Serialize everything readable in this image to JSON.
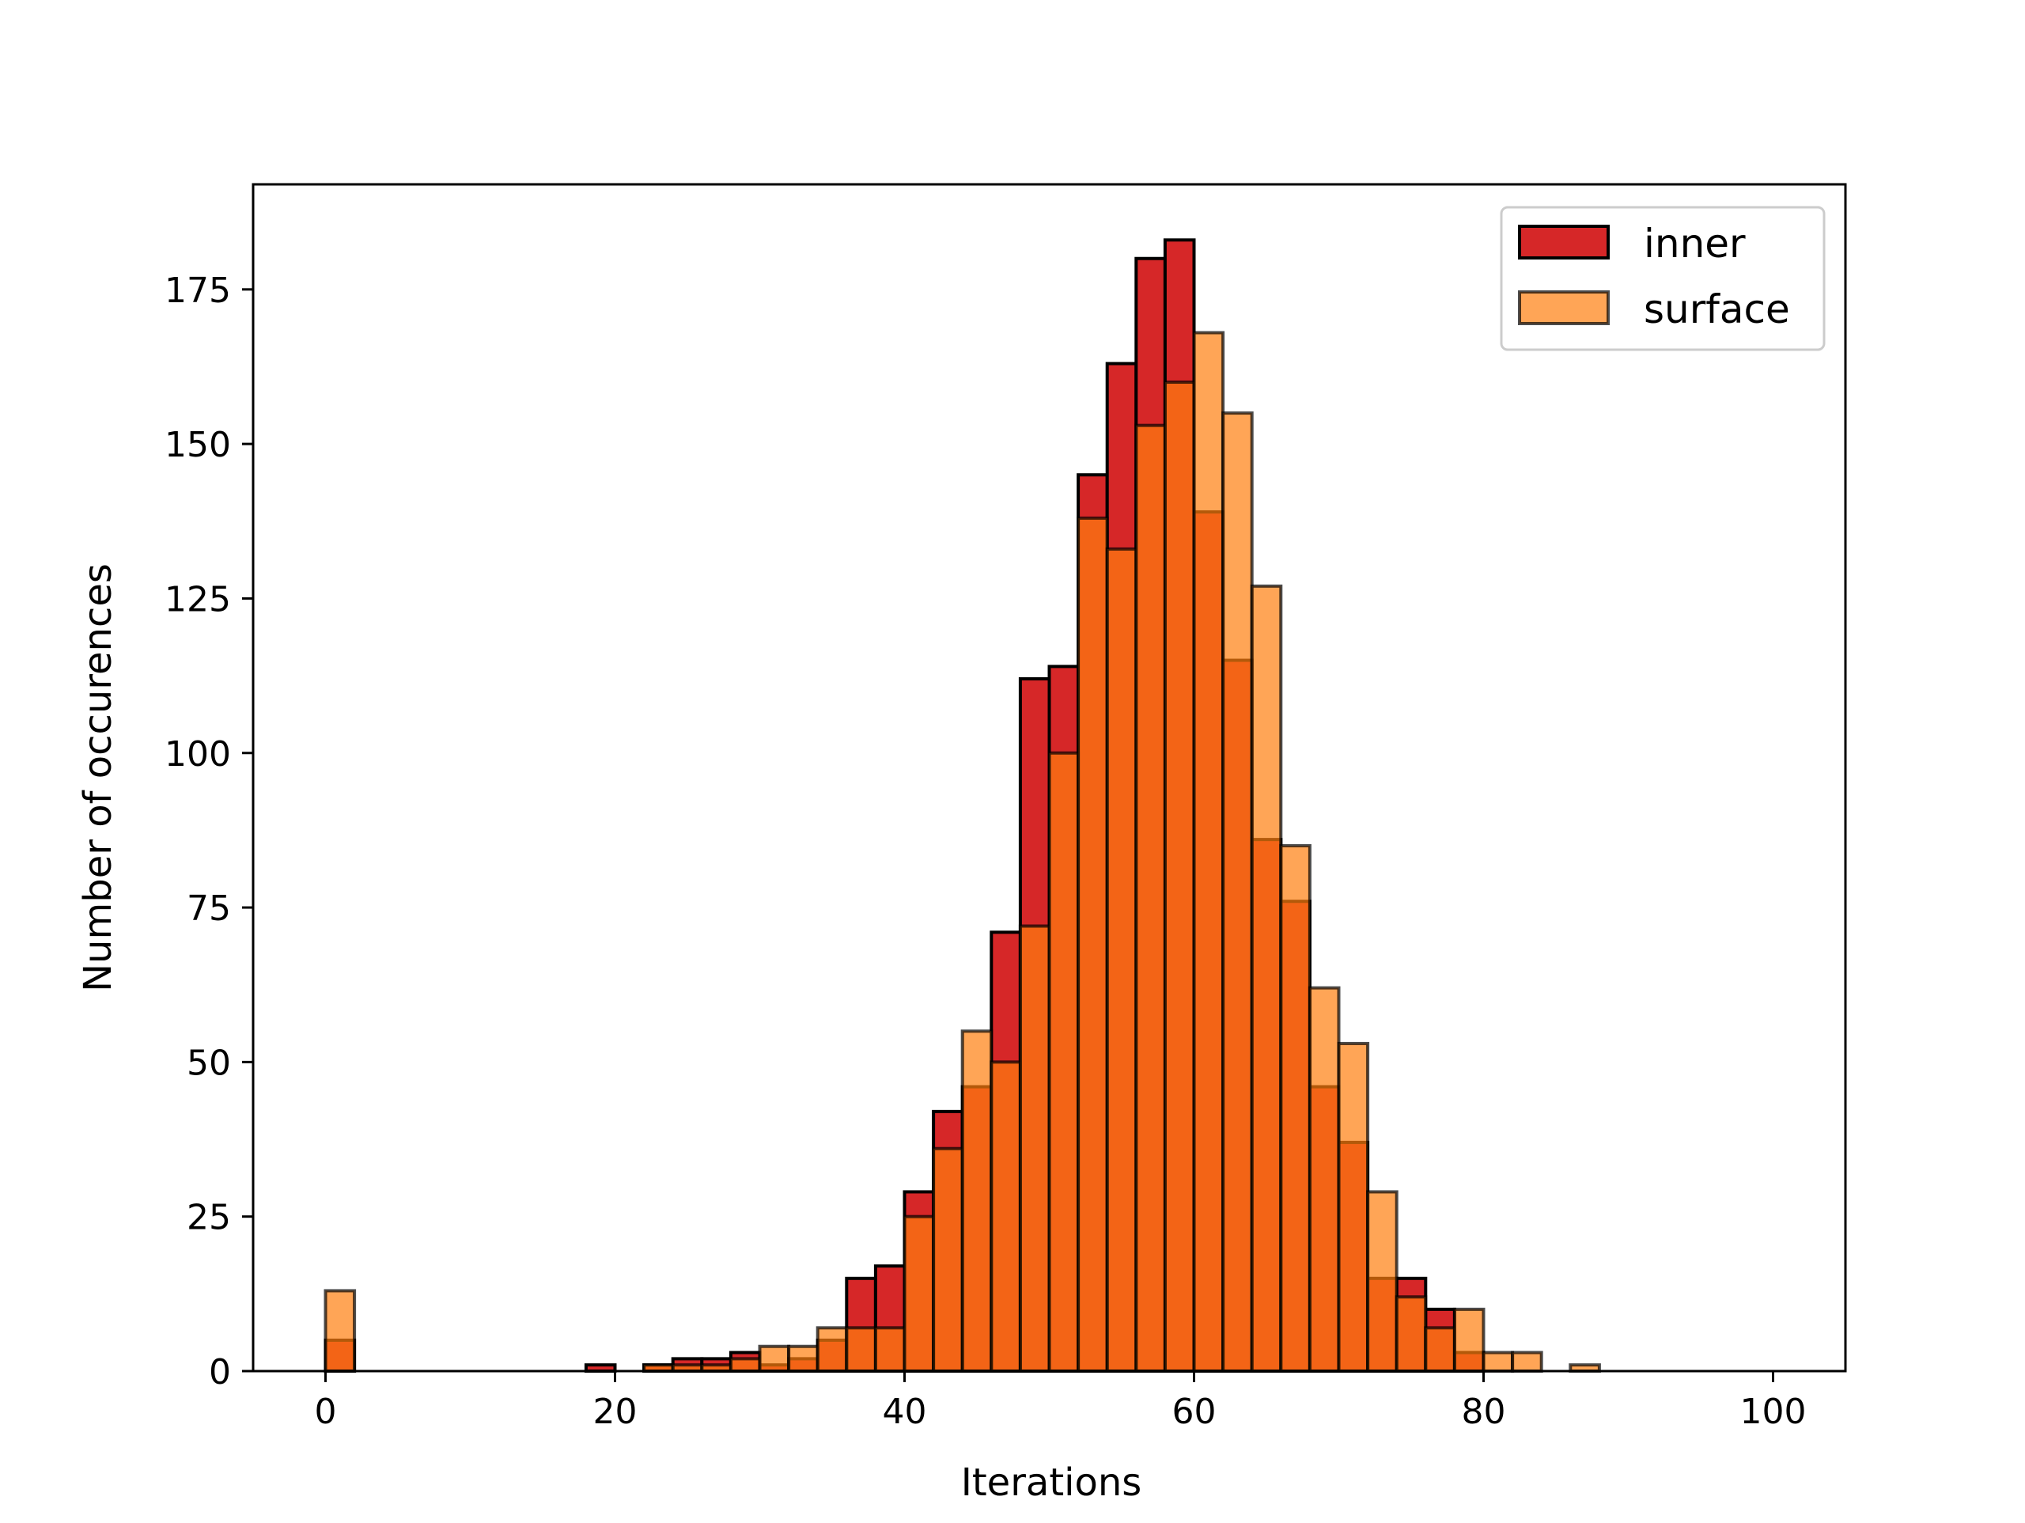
{
  "chart_data": {
    "type": "bar",
    "title": "",
    "xlabel": "Iterations",
    "ylabel": "Number of occurences",
    "xlim": [
      -5,
      105
    ],
    "ylim": [
      0,
      192
    ],
    "bin_width": 2,
    "x_ticks": [
      0,
      20,
      40,
      60,
      80,
      100
    ],
    "y_ticks": [
      0,
      25,
      50,
      75,
      100,
      125,
      150,
      175
    ],
    "grid": false,
    "legend_position": "top-right",
    "bin_starts": [
      0,
      2,
      4,
      6,
      8,
      10,
      12,
      14,
      16,
      18,
      20,
      22,
      24,
      26,
      28,
      30,
      32,
      34,
      36,
      38,
      40,
      42,
      44,
      46,
      48,
      50,
      52,
      54,
      56,
      58,
      60,
      62,
      64,
      66,
      68,
      70,
      72,
      74,
      76,
      78,
      80,
      82,
      84,
      86,
      88,
      90,
      92,
      94,
      96,
      98
    ],
    "series": [
      {
        "name": "inner",
        "color": "#d62728",
        "values": [
          5,
          0,
          0,
          0,
          0,
          0,
          0,
          0,
          0,
          1,
          0,
          1,
          2,
          2,
          3,
          1,
          2,
          5,
          15,
          17,
          29,
          42,
          46,
          71,
          112,
          114,
          145,
          163,
          180,
          183,
          139,
          115,
          86,
          76,
          46,
          37,
          15,
          15,
          10,
          3,
          0,
          0,
          0,
          0,
          0,
          0,
          0,
          0,
          0,
          0
        ]
      },
      {
        "name": "surface",
        "color": "#ff7f0e",
        "values": [
          13,
          0,
          0,
          0,
          0,
          0,
          0,
          0,
          0,
          0,
          0,
          1,
          1,
          1,
          2,
          4,
          4,
          7,
          7,
          7,
          25,
          36,
          55,
          50,
          72,
          100,
          138,
          133,
          153,
          160,
          168,
          155,
          127,
          85,
          62,
          53,
          29,
          12,
          7,
          10,
          3,
          3,
          0,
          1,
          0,
          0,
          0,
          0,
          0,
          0
        ]
      }
    ]
  }
}
